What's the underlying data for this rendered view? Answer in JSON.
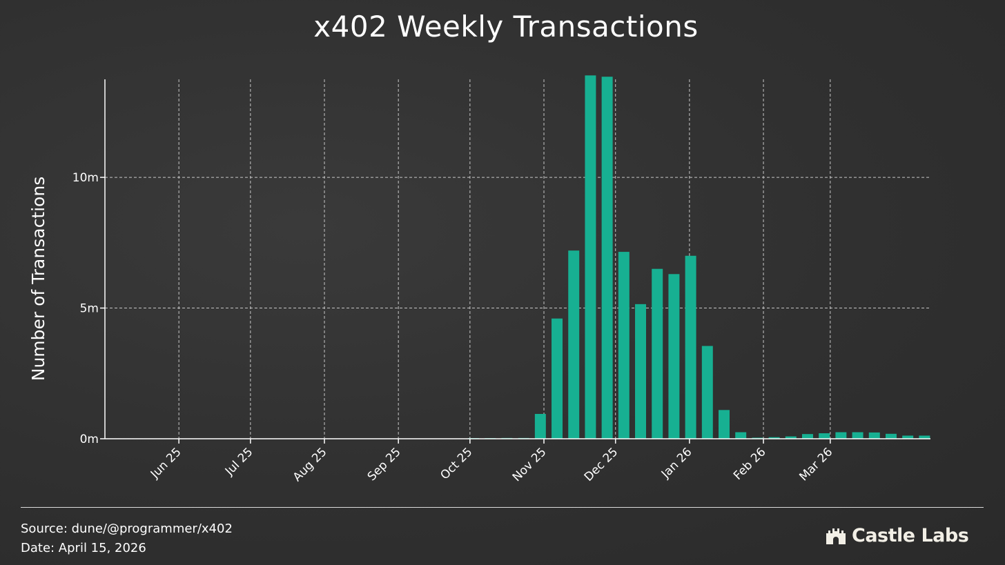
{
  "chart_data": {
    "type": "bar",
    "title": "x402 Weekly Transactions",
    "xlabel": "",
    "ylabel": "Number of Transactions",
    "ylim": [
      0,
      13.75
    ],
    "y_unit": "m",
    "y_ticks": [
      0,
      5,
      10
    ],
    "y_tick_labels": [
      "0m",
      "5m",
      "10m"
    ],
    "grid": true,
    "bar_color": "#17b092",
    "x_ticks": [
      {
        "date": "2025-06-01",
        "label": "Jun 25"
      },
      {
        "date": "2025-07-01",
        "label": "Jul 25"
      },
      {
        "date": "2025-08-01",
        "label": "Aug 25"
      },
      {
        "date": "2025-09-01",
        "label": "Sep 25"
      },
      {
        "date": "2025-10-01",
        "label": "Oct 25"
      },
      {
        "date": "2025-11-01",
        "label": "Nov 25"
      },
      {
        "date": "2025-12-01",
        "label": "Dec 25"
      },
      {
        "date": "2026-01-01",
        "label": "Jan 26"
      },
      {
        "date": "2026-02-01",
        "label": "Feb 26"
      },
      {
        "date": "2026-03-01",
        "label": "Mar 26"
      }
    ],
    "x": [
      "2025-05-05",
      "2025-05-12",
      "2025-05-19",
      "2025-05-26",
      "2025-06-02",
      "2025-06-09",
      "2025-06-16",
      "2025-06-23",
      "2025-06-30",
      "2025-07-07",
      "2025-07-14",
      "2025-07-21",
      "2025-07-28",
      "2025-08-04",
      "2025-08-11",
      "2025-08-18",
      "2025-08-25",
      "2025-09-01",
      "2025-09-08",
      "2025-09-15",
      "2025-09-22",
      "2025-09-29",
      "2025-10-06",
      "2025-10-13",
      "2025-10-20",
      "2025-10-27",
      "2025-11-03",
      "2025-11-10",
      "2025-11-17",
      "2025-11-24",
      "2025-12-01",
      "2025-12-08",
      "2025-12-15",
      "2025-12-22",
      "2025-12-29",
      "2026-01-05",
      "2026-01-12",
      "2026-01-19",
      "2026-01-26",
      "2026-02-02",
      "2026-02-09",
      "2026-02-16",
      "2026-02-23",
      "2026-03-02",
      "2026-03-09",
      "2026-03-16",
      "2026-03-23",
      "2026-03-30",
      "2026-04-06"
    ],
    "values": [
      0,
      0,
      0,
      0,
      0,
      0,
      0,
      0,
      0,
      0,
      0,
      0,
      0,
      0,
      0,
      0,
      0,
      0,
      0,
      0,
      0,
      0.005,
      0.01,
      0.03,
      0.03,
      0.95,
      4.6,
      7.2,
      13.9,
      13.85,
      7.15,
      5.15,
      6.5,
      6.3,
      7.0,
      3.55,
      1.1,
      0.25,
      0.04,
      0.06,
      0.09,
      0.18,
      0.21,
      0.25,
      0.25,
      0.24,
      0.19,
      0.12,
      0.12
    ]
  },
  "footer": {
    "source": "Source: dune/@programmer/x402",
    "date": "Date: April 15, 2026",
    "brand": "Castle Labs",
    "brand_icon": "castle-icon",
    "line_color": "#dddddd"
  }
}
